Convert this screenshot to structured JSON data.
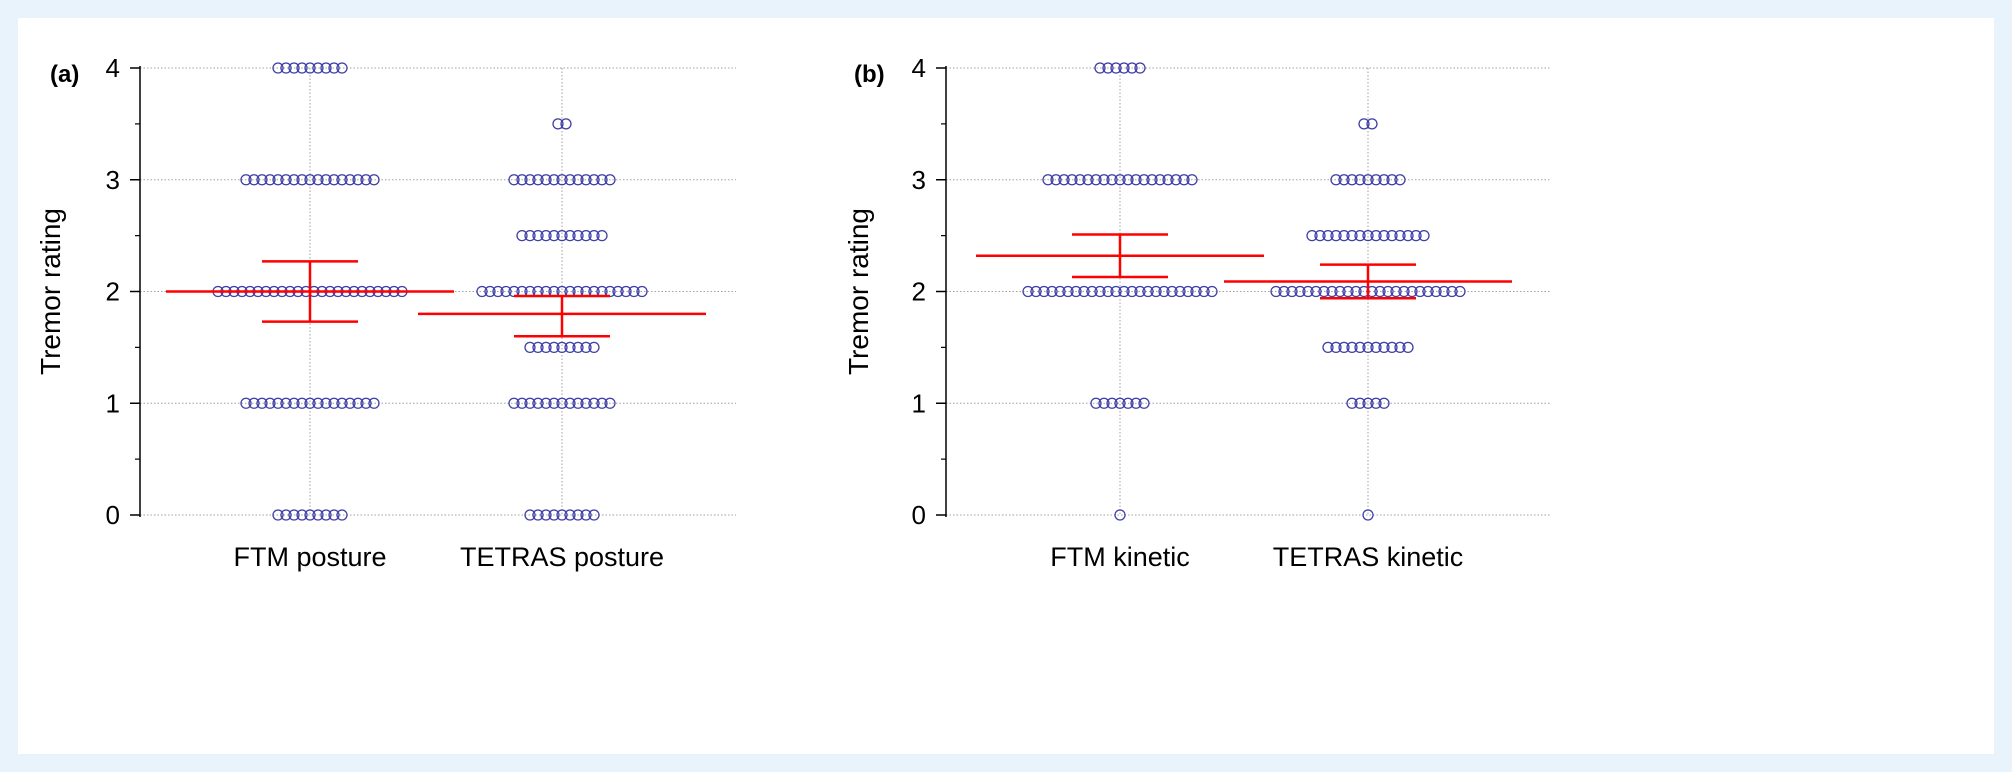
{
  "colors": {
    "background": "#e8f3fb",
    "panel": "#ffffff",
    "points": "#3f3fa8",
    "mean_ci": "#ff0000",
    "grid": "#a0a0a0"
  },
  "chart_data": [
    {
      "type": "scatter",
      "subtype": "dot-plot with mean and 95% CI",
      "panel_label": "(a)",
      "ylabel": "Tremor rating",
      "ylim": [
        0,
        4
      ],
      "yticks": [
        "0",
        "1",
        "2",
        "3",
        "4"
      ],
      "grid": true,
      "categories": [
        "FTM posture",
        "TETRAS posture"
      ],
      "series": [
        {
          "category": "FTM posture",
          "distribution": [
            {
              "y": 0,
              "count": 9
            },
            {
              "y": 1,
              "count": 17
            },
            {
              "y": 2,
              "count": 24
            },
            {
              "y": 3,
              "count": 17
            },
            {
              "y": 4,
              "count": 9
            }
          ],
          "mean": 2.0,
          "ci_low": 1.73,
          "ci_high": 2.27
        },
        {
          "category": "TETRAS posture",
          "distribution": [
            {
              "y": 0,
              "count": 9
            },
            {
              "y": 1,
              "count": 13
            },
            {
              "y": 1.5,
              "count": 9
            },
            {
              "y": 2,
              "count": 21
            },
            {
              "y": 2.5,
              "count": 11
            },
            {
              "y": 3,
              "count": 13
            },
            {
              "y": 3.5,
              "count": 2
            }
          ],
          "mean": 1.8,
          "ci_low": 1.6,
          "ci_high": 1.96
        }
      ]
    },
    {
      "type": "scatter",
      "subtype": "dot-plot with mean and 95% CI",
      "panel_label": "(b)",
      "ylabel": "Tremor rating",
      "ylim": [
        0,
        4
      ],
      "yticks": [
        "0",
        "1",
        "2",
        "3",
        "4"
      ],
      "grid": true,
      "categories": [
        "FTM kinetic",
        "TETRAS kinetic"
      ],
      "series": [
        {
          "category": "FTM kinetic",
          "distribution": [
            {
              "y": 0,
              "count": 1
            },
            {
              "y": 1,
              "count": 7
            },
            {
              "y": 2,
              "count": 24
            },
            {
              "y": 3,
              "count": 19
            },
            {
              "y": 4,
              "count": 6
            }
          ],
          "mean": 2.32,
          "ci_low": 2.13,
          "ci_high": 2.51
        },
        {
          "category": "TETRAS kinetic",
          "distribution": [
            {
              "y": 0,
              "count": 1
            },
            {
              "y": 1,
              "count": 5
            },
            {
              "y": 1.5,
              "count": 11
            },
            {
              "y": 2,
              "count": 24
            },
            {
              "y": 2.5,
              "count": 15
            },
            {
              "y": 3,
              "count": 9
            },
            {
              "y": 3.5,
              "count": 2
            }
          ],
          "mean": 2.09,
          "ci_low": 1.94,
          "ci_high": 2.24
        }
      ]
    }
  ]
}
